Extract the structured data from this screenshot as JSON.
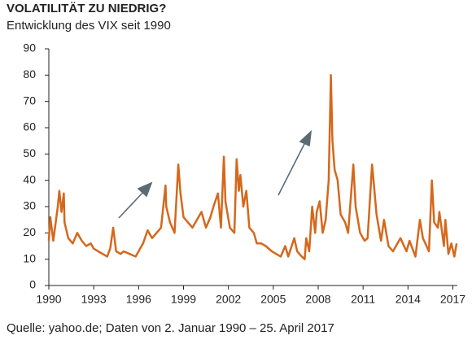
{
  "chart_data": {
    "type": "line",
    "title": "VOLATILITÄT ZU NIEDRIG?",
    "subtitle": "Entwicklung des VIX seit 1990",
    "source": "Quelle: yahoo.de; Daten von 2. Januar 1990 – 25. April 2017",
    "x": [
      1990,
      1990.1,
      1990.3,
      1990.6,
      1990.7,
      1990.85,
      1991.0,
      1991.05,
      1991.3,
      1991.6,
      1991.9,
      1992.2,
      1992.5,
      1992.8,
      1993.0,
      1993.3,
      1993.6,
      1993.9,
      1994.1,
      1994.3,
      1994.5,
      1994.8,
      1995.0,
      1995.4,
      1995.8,
      1996.0,
      1996.3,
      1996.6,
      1996.9,
      1997.2,
      1997.5,
      1997.8,
      1997.85,
      1998.1,
      1998.4,
      1998.65,
      1998.8,
      1999.0,
      1999.3,
      1999.6,
      1999.9,
      2000.2,
      2000.5,
      2000.8,
      2001.0,
      2001.3,
      2001.5,
      2001.7,
      2001.8,
      2002.1,
      2002.4,
      2002.55,
      2002.7,
      2002.8,
      2003.0,
      2003.2,
      2003.4,
      2003.7,
      2003.9,
      2004.2,
      2004.5,
      2004.9,
      2005.2,
      2005.5,
      2005.8,
      2006.0,
      2006.4,
      2006.6,
      2006.9,
      2007.1,
      2007.2,
      2007.4,
      2007.6,
      2007.8,
      2007.9,
      2008.1,
      2008.3,
      2008.5,
      2008.7,
      2008.85,
      2008.95,
      2009.1,
      2009.3,
      2009.5,
      2009.8,
      2010.0,
      2010.35,
      2010.5,
      2010.8,
      2011.1,
      2011.3,
      2011.6,
      2011.7,
      2011.9,
      2012.2,
      2012.4,
      2012.7,
      2013.0,
      2013.5,
      2013.9,
      2014.1,
      2014.5,
      2014.8,
      2015.0,
      2015.4,
      2015.6,
      2015.75,
      2016.0,
      2016.1,
      2016.4,
      2016.5,
      2016.7,
      2016.9,
      2017.1,
      2017.25
    ],
    "series": [
      {
        "name": "VIX",
        "color": "#d4681c",
        "values": [
          17,
          26,
          17,
          30,
          36,
          28,
          35,
          24,
          18,
          16,
          20,
          17,
          15,
          16,
          14,
          13,
          12,
          11,
          14,
          22,
          13,
          12,
          13,
          12,
          11,
          13,
          16,
          21,
          18,
          20,
          22,
          38,
          30,
          24,
          20,
          46,
          35,
          26,
          24,
          22,
          25,
          28,
          22,
          26,
          30,
          35,
          22,
          49,
          32,
          22,
          20,
          48,
          36,
          42,
          30,
          36,
          22,
          20,
          16,
          16,
          15,
          13,
          12,
          11,
          15,
          11,
          18,
          13,
          11,
          10,
          18,
          13,
          30,
          20,
          28,
          32,
          20,
          25,
          40,
          80,
          55,
          44,
          40,
          27,
          24,
          20,
          46,
          30,
          20,
          17,
          18,
          46,
          40,
          27,
          17,
          25,
          15,
          13,
          18,
          13,
          17,
          11,
          25,
          18,
          13,
          40,
          24,
          22,
          28,
          15,
          25,
          12,
          16,
          11,
          16
        ]
      }
    ],
    "xlim": [
      1990,
      2017.3
    ],
    "xticks": [
      1990,
      1993,
      1996,
      1999,
      2002,
      2005,
      2008,
      2011,
      2014,
      2017
    ],
    "ylim": [
      0,
      90
    ],
    "yticks": [
      0,
      10,
      20,
      30,
      40,
      50,
      60,
      70,
      80,
      90
    ]
  }
}
